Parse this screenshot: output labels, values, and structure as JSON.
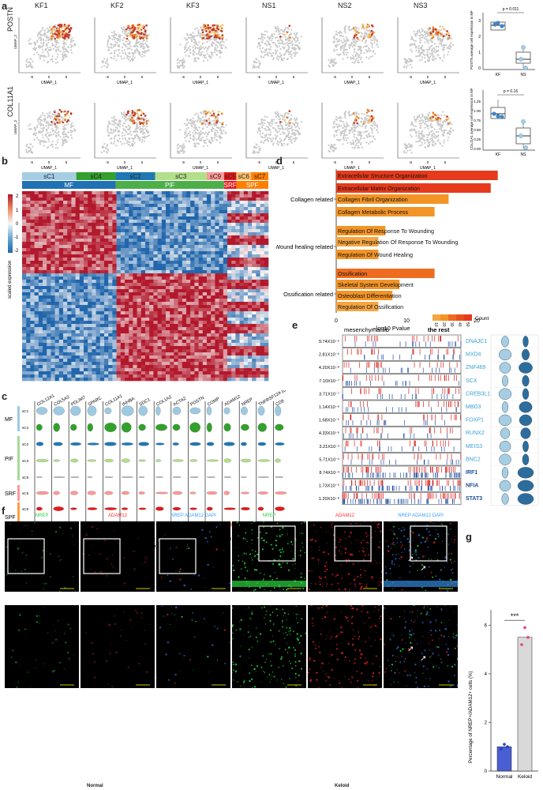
{
  "panels": {
    "a": "a",
    "b": "b",
    "c": "c",
    "d": "d",
    "e": "e",
    "f": "f",
    "g": "g"
  },
  "panel_a": {
    "columns": [
      "KF1",
      "KF2",
      "KF3",
      "NS1",
      "NS2",
      "NS3"
    ],
    "rows": [
      "POSTN",
      "COL11A1"
    ],
    "umap_x_label": "UMAP_1",
    "umap_y_label": "UMAP_2",
    "x_ticks": [
      "-5",
      "0",
      "5"
    ],
    "boxplots": [
      {
        "ylabel": "POSTN average cell expression in MF",
        "p": "p = 0.011",
        "groups": [
          "KF",
          "NS"
        ],
        "yticks": [
          "0",
          "1",
          "2",
          "3"
        ]
      },
      {
        "ylabel": "COL11A1 average cell expression in MF",
        "p": "p = 0.16",
        "groups": [
          "KF",
          "NS"
        ],
        "yticks": [
          "0.00",
          "0.25",
          "0.50",
          "0.75",
          "1.00",
          "1.25"
        ]
      }
    ]
  },
  "panel_b": {
    "clusters_top": [
      "sC1",
      "sC4",
      "sC2",
      "sC3",
      "sC9",
      "sC5",
      "sC6",
      "sC7"
    ],
    "groups": [
      "MF",
      "PIF",
      "SRF",
      "SPF"
    ],
    "legend_ticks": [
      "2",
      "1",
      "0",
      "-1",
      "-2"
    ],
    "legend_label": "scaled expression",
    "colors": {
      "sC1": "#a6cee3",
      "sC4": "#33a02c",
      "sC2": "#1f78b4",
      "sC3": "#b2df8a",
      "sC9": "#fb9a99",
      "sC5": "#e31a1c",
      "sC6": "#fdbf6f",
      "sC7": "#ff7f00",
      "MF": "#2171b5",
      "PIF": "#4daf4a",
      "SRF": "#e41a1c",
      "SPF": "#ff7f00"
    }
  },
  "panel_c": {
    "genes": [
      "COL12A1",
      "COL5A2",
      "PDLIM7",
      "SPARC",
      "COL11A1",
      "INHBA",
      "SDC1",
      "COL1A2",
      "ACTA2",
      "POSTN",
      "COMP",
      "ADAM12",
      "NREP",
      "TNFRSF12A (CD266)",
      "CD9"
    ],
    "rows": [
      "sC1",
      "sC4",
      "sC2",
      "sC3",
      "sC9",
      "sC5",
      "sC6",
      "sC7"
    ],
    "groups": [
      "MF",
      "PIF",
      "SRF",
      "SPF"
    ],
    "xlabel": "Scaled Expression Value",
    "axis_ticks": [
      "0",
      "4",
      "0",
      "4",
      "0",
      "4",
      "0",
      "6",
      "0",
      "6",
      "0",
      "3",
      "0",
      "3",
      "0",
      "6",
      "0",
      "4",
      "0",
      "6",
      "0",
      "6",
      "0",
      "3",
      "0",
      "4",
      "0",
      "2",
      "0",
      "4"
    ]
  },
  "panel_d": {
    "chart_data": {
      "type": "bar",
      "categories": [
        "Extracellular Structure Organization",
        "Extracellular Matrix Organization",
        "Collagen Fibril Organization",
        "Collagen Metabolic Process",
        "Regulation Of Response To Wounding",
        "Negative Regulation Of Response To Wounding",
        "Regulation Of Wound Healing",
        "Ossification",
        "Skeletal System Development",
        "Osteoblast Differentiation",
        "Regulation Of Ossification"
      ],
      "values": [
        23,
        22,
        16,
        14,
        7,
        6,
        6,
        14,
        9,
        8,
        6
      ],
      "counts": [
        50,
        50,
        20,
        15,
        15,
        12,
        15,
        30,
        20,
        15,
        10
      ],
      "groups": [
        "Collagen related",
        "Wound healing related",
        "Ossification related"
      ],
      "xlabel": "−log10 Pvalue",
      "xticks": [
        "0",
        "10",
        "20"
      ],
      "legend_title": "Count",
      "legend_ticks": [
        "10",
        "20",
        "30",
        "40",
        "50"
      ]
    }
  },
  "panel_e": {
    "header_left": "mesenchymal fib",
    "header_right": "the rest",
    "pvalues": [
      "9.74X10⁻⁵",
      "2.81X10⁻⁶",
      "4.20X10⁻⁸",
      "7.10X10⁻⁷",
      "3.71X10⁻⁷",
      "1.14X10⁻⁶",
      "1.68X10⁻⁵",
      "4.33X10⁻⁶",
      "3.21X10⁻³",
      "5.71X10⁻²",
      "8.74X10⁻³",
      "1.73X10⁻⁵",
      "1.20X10⁻⁸"
    ],
    "genes": [
      "DNAJC1",
      "MXD4",
      "ZNF469",
      "SCX",
      "CREB3L1",
      "MBD3",
      "FOXP1",
      "RUNX2",
      "MEIS3",
      "BNC2",
      "IRF1",
      "NFIA",
      "STAT3"
    ],
    "violin_x": [
      "MF",
      "the_rest"
    ]
  },
  "panel_f": {
    "left_labels": [
      {
        "text": "NREP",
        "color": "#2ecc40"
      },
      {
        "text": "ADAM12",
        "color": "#ff3030"
      },
      {
        "text": "NREP ADAM12 DAPI",
        "color": "#3aa0ff"
      }
    ],
    "right_labels": [
      {
        "text": "NREP",
        "color": "#2ecc40"
      },
      {
        "text": "ADAM12",
        "color": "#ff3030"
      },
      {
        "text": "NREP ADAM12 DAPI",
        "color": "#3aa0ff"
      }
    ],
    "normal": "Normal",
    "keloid": "Keloid"
  },
  "panel_g": {
    "chart_data": {
      "type": "bar",
      "categories": [
        "Normal",
        "Keloid"
      ],
      "values": [
        1.0,
        5.5
      ],
      "ylabel": "Percentage of NREP+/ADAM12+ cells (%)",
      "yticks": [
        "0",
        "2",
        "4",
        "6"
      ],
      "ylim": [
        0,
        6.5
      ],
      "significance": "***"
    }
  }
}
